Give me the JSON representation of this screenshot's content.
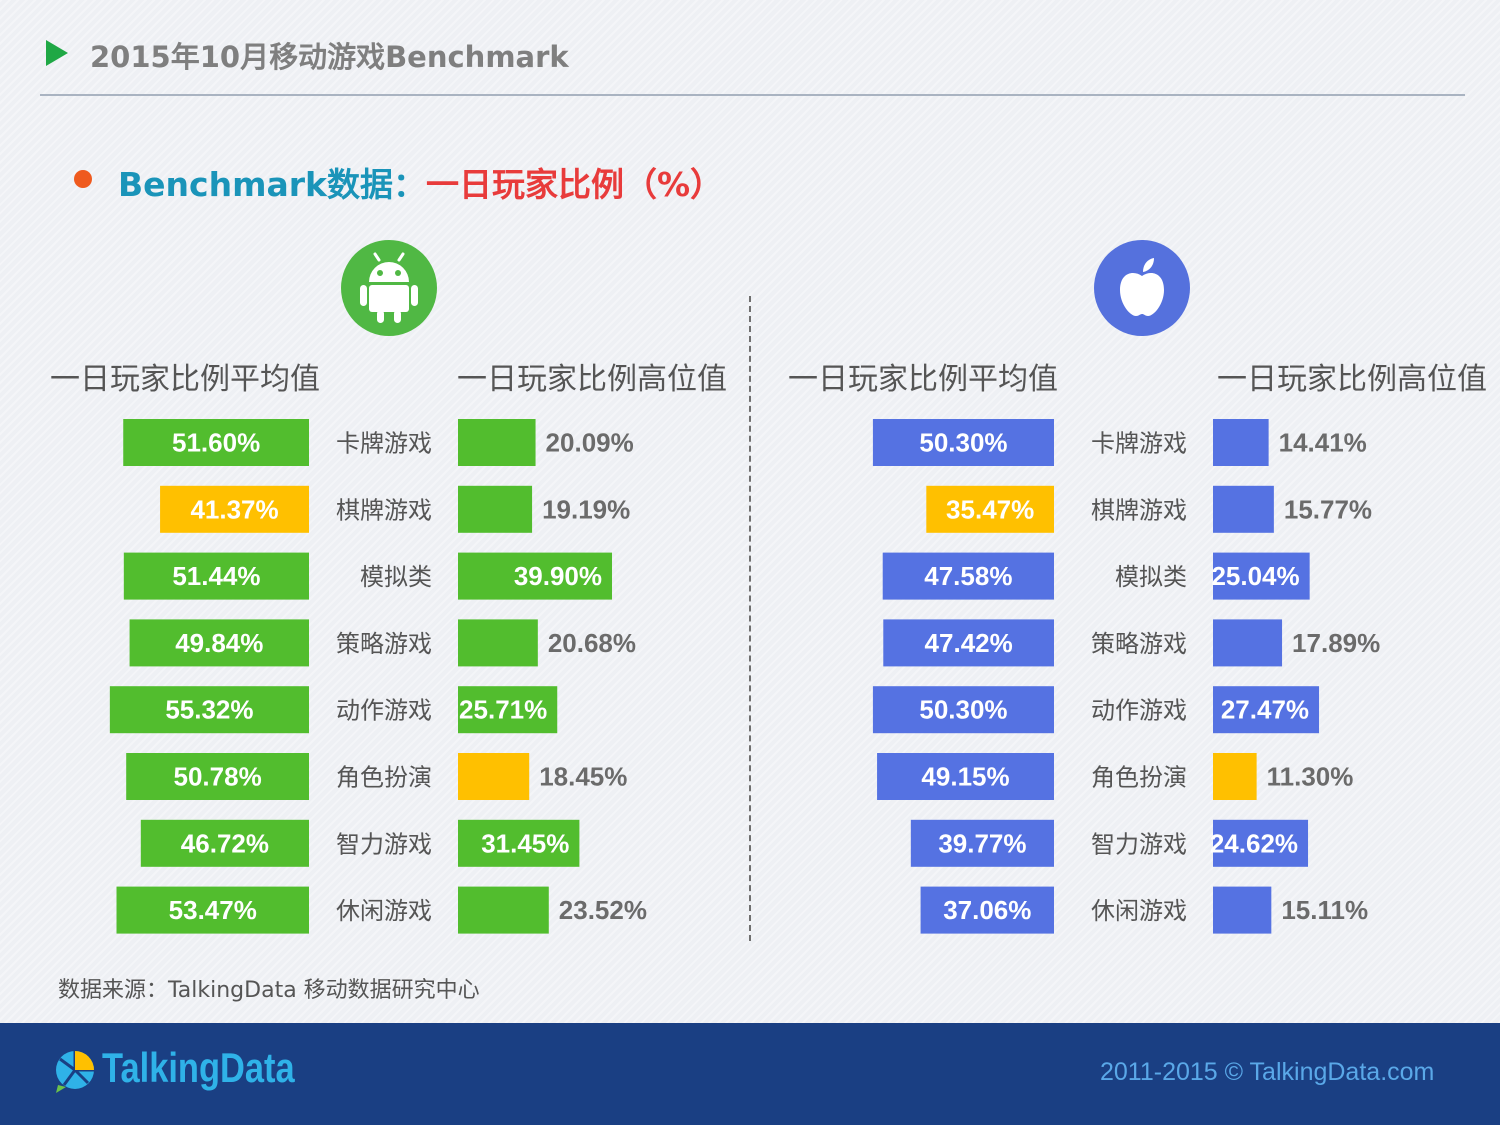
{
  "header": {
    "title": "2015年10月移动游戏Benchmark",
    "subtitle_part1": "Benchmark数据：",
    "subtitle_part2": "一日玩家比例（%）"
  },
  "icons": {
    "android": "android-icon",
    "apple": "apple-icon",
    "brand": "talkingdata-logo-icon"
  },
  "colors": {
    "green": "#52bd2e",
    "yellow": "#ffc000",
    "blue": "#5572e2",
    "title_teal": "#1a94b9",
    "title_red": "#e83b3b"
  },
  "chart_data": {
    "type": "bar",
    "title": "Benchmark数据：一日玩家比例（%）",
    "categories": [
      "卡牌游戏",
      "棋牌游戏",
      "模拟类",
      "策略游戏",
      "动作游戏",
      "角色扮演",
      "智力游戏",
      "休闲游戏"
    ],
    "groups": [
      {
        "platform": "android",
        "series": [
          {
            "name": "一日玩家比例平均值",
            "values": [
              51.6,
              41.37,
              51.44,
              49.84,
              55.32,
              50.78,
              46.72,
              53.47
            ],
            "labels": [
              "51.60%",
              "41.37%",
              "51.44%",
              "49.84%",
              "55.32%",
              "50.78%",
              "46.72%",
              "53.47%"
            ],
            "highlight_index": 1
          },
          {
            "name": "一日玩家比例高位值",
            "values": [
              20.09,
              19.19,
              39.9,
              20.68,
              25.71,
              18.45,
              31.45,
              23.52
            ],
            "labels": [
              "20.09%",
              "19.19%",
              "39.90%",
              "20.68%",
              "25.71%",
              "18.45%",
              "31.45%",
              "23.52%"
            ],
            "highlight_index": 5
          }
        ]
      },
      {
        "platform": "apple",
        "series": [
          {
            "name": "一日玩家比例平均值",
            "values": [
              50.3,
              35.47,
              47.58,
              47.42,
              50.3,
              49.15,
              39.77,
              37.06
            ],
            "labels": [
              "50.30%",
              "35.47%",
              "47.58%",
              "47.42%",
              "50.30%",
              "49.15%",
              "39.77%",
              "37.06%"
            ],
            "highlight_index": 1
          },
          {
            "name": "一日玩家比例高位值",
            "values": [
              14.41,
              15.77,
              25.04,
              17.89,
              27.47,
              11.3,
              24.62,
              15.11
            ],
            "labels": [
              "14.41%",
              "15.77%",
              "25.04%",
              "17.89%",
              "27.47%",
              "11.30%",
              "24.62%",
              "15.11%"
            ],
            "highlight_index": 5
          }
        ]
      }
    ]
  },
  "source_note": "数据来源：TalkingData 移动数据研究中心",
  "footer": {
    "brand": "TalkingData",
    "copyright": "2011-2015 © TalkingData.com"
  }
}
